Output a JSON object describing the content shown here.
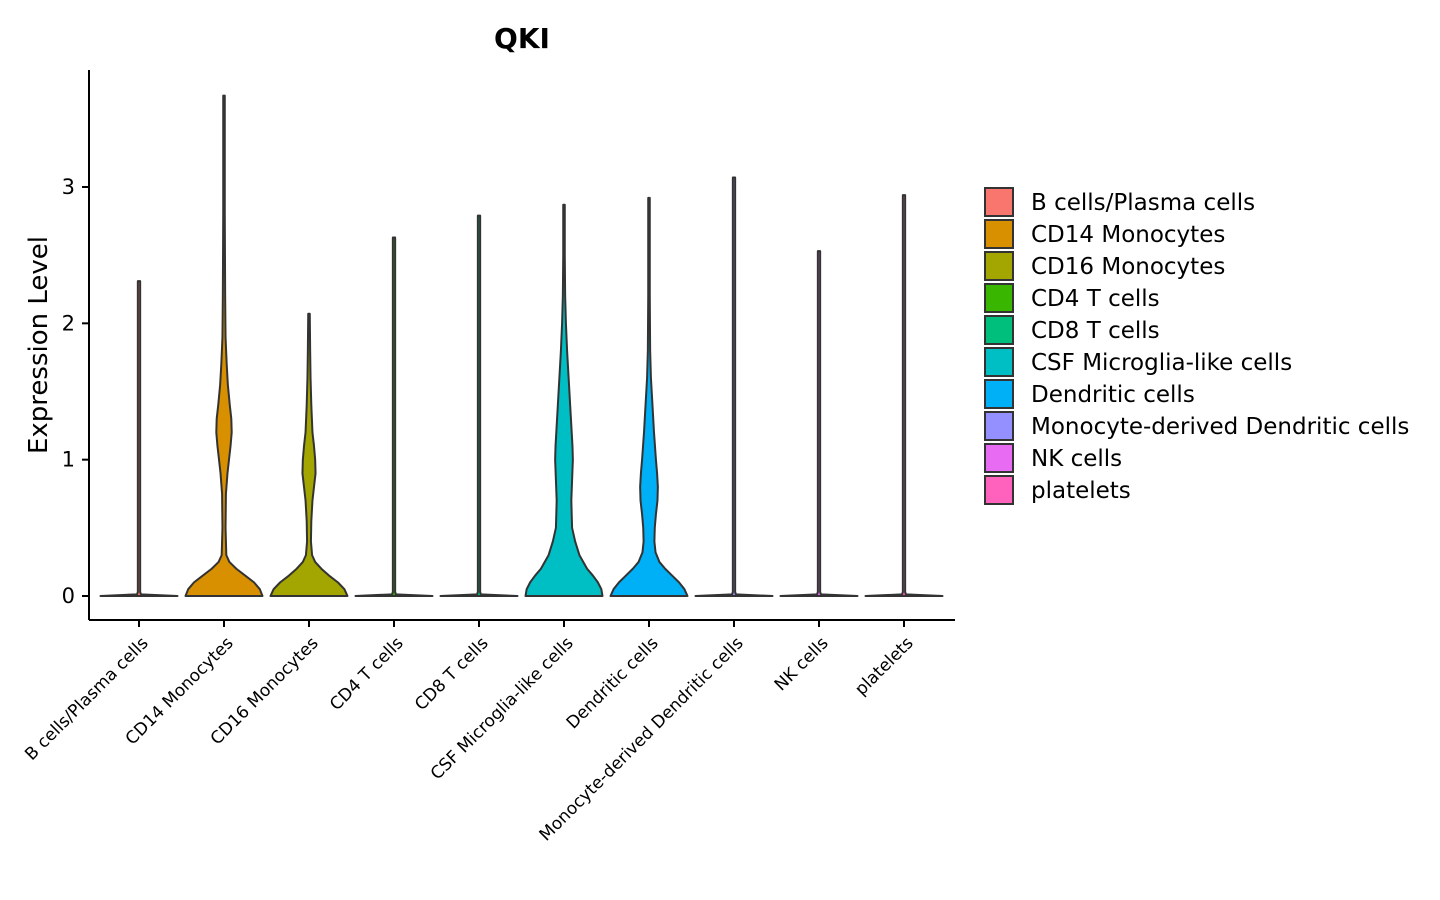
{
  "chart_data": {
    "type": "violin",
    "title": "QKI",
    "xlabel": "",
    "ylabel": "Expression Level",
    "ylim": [
      -0.18,
      3.88
    ],
    "yticks": [
      0,
      1,
      2,
      3
    ],
    "legend_position": "right",
    "categories": [
      "B cells/Plasma cells",
      "CD14 Monocytes",
      "CD16 Monocytes",
      "CD4 T cells",
      "CD8 T cells",
      "CSF Microglia-like cells",
      "Dendritic cells",
      "Monocyte-derived Dendritic cells",
      "NK cells",
      "platelets"
    ],
    "colors": [
      "#F8766D",
      "#D89000",
      "#A3A500",
      "#39B600",
      "#00BF7D",
      "#00BFC4",
      "#00B0F6",
      "#9590FF",
      "#E76BF3",
      "#FF62BC"
    ],
    "series": [
      {
        "name": "B cells/Plasma cells",
        "max": 2.31,
        "profile": [
          [
            0,
            1
          ],
          [
            0.012,
            0.05
          ],
          [
            0.03,
            0.03
          ],
          [
            2.31,
            0.03
          ]
        ]
      },
      {
        "name": "CD14 Monocytes",
        "max": 3.67,
        "profile": [
          [
            0,
            1
          ],
          [
            0.05,
            0.93
          ],
          [
            0.1,
            0.78
          ],
          [
            0.15,
            0.55
          ],
          [
            0.2,
            0.32
          ],
          [
            0.25,
            0.14
          ],
          [
            0.3,
            0.06
          ],
          [
            0.5,
            0.04
          ],
          [
            0.75,
            0.05
          ],
          [
            0.9,
            0.09
          ],
          [
            1.0,
            0.13
          ],
          [
            1.1,
            0.17
          ],
          [
            1.2,
            0.2
          ],
          [
            1.3,
            0.19
          ],
          [
            1.4,
            0.15
          ],
          [
            1.55,
            0.1
          ],
          [
            1.7,
            0.07
          ],
          [
            1.9,
            0.04
          ],
          [
            2.2,
            0.03
          ],
          [
            2.8,
            0.02
          ],
          [
            3.67,
            0.02
          ]
        ]
      },
      {
        "name": "CD16 Monocytes",
        "max": 2.07,
        "profile": [
          [
            0,
            1
          ],
          [
            0.05,
            0.92
          ],
          [
            0.1,
            0.75
          ],
          [
            0.15,
            0.52
          ],
          [
            0.2,
            0.32
          ],
          [
            0.25,
            0.16
          ],
          [
            0.3,
            0.08
          ],
          [
            0.4,
            0.05
          ],
          [
            0.55,
            0.06
          ],
          [
            0.7,
            0.09
          ],
          [
            0.8,
            0.13
          ],
          [
            0.9,
            0.17
          ],
          [
            1.0,
            0.16
          ],
          [
            1.1,
            0.13
          ],
          [
            1.2,
            0.09
          ],
          [
            1.4,
            0.06
          ],
          [
            1.6,
            0.04
          ],
          [
            1.8,
            0.03
          ],
          [
            2.07,
            0.02
          ]
        ]
      },
      {
        "name": "CD4 T cells",
        "max": 2.63,
        "profile": [
          [
            0,
            1
          ],
          [
            0.012,
            0.05
          ],
          [
            0.03,
            0.03
          ],
          [
            2.63,
            0.03
          ]
        ]
      },
      {
        "name": "CD8 T cells",
        "max": 2.79,
        "profile": [
          [
            0,
            1
          ],
          [
            0.012,
            0.05
          ],
          [
            0.03,
            0.03
          ],
          [
            2.79,
            0.03
          ]
        ]
      },
      {
        "name": "CSF Microglia-like cells",
        "max": 2.87,
        "profile": [
          [
            0,
            1
          ],
          [
            0.05,
            0.97
          ],
          [
            0.1,
            0.88
          ],
          [
            0.15,
            0.75
          ],
          [
            0.2,
            0.6
          ],
          [
            0.3,
            0.4
          ],
          [
            0.4,
            0.29
          ],
          [
            0.5,
            0.21
          ],
          [
            0.7,
            0.19
          ],
          [
            0.85,
            0.21
          ],
          [
            1.0,
            0.23
          ],
          [
            1.1,
            0.22
          ],
          [
            1.2,
            0.2
          ],
          [
            1.4,
            0.16
          ],
          [
            1.6,
            0.12
          ],
          [
            1.8,
            0.08
          ],
          [
            2.0,
            0.05
          ],
          [
            2.2,
            0.03
          ],
          [
            2.5,
            0.02
          ],
          [
            2.87,
            0.02
          ]
        ]
      },
      {
        "name": "Dendritic cells",
        "max": 2.92,
        "profile": [
          [
            0,
            1
          ],
          [
            0.05,
            0.92
          ],
          [
            0.1,
            0.78
          ],
          [
            0.15,
            0.6
          ],
          [
            0.2,
            0.42
          ],
          [
            0.25,
            0.27
          ],
          [
            0.32,
            0.17
          ],
          [
            0.4,
            0.14
          ],
          [
            0.5,
            0.15
          ],
          [
            0.6,
            0.18
          ],
          [
            0.7,
            0.22
          ],
          [
            0.8,
            0.23
          ],
          [
            0.9,
            0.21
          ],
          [
            1.0,
            0.18
          ],
          [
            1.2,
            0.13
          ],
          [
            1.4,
            0.09
          ],
          [
            1.6,
            0.05
          ],
          [
            1.8,
            0.03
          ],
          [
            2.2,
            0.02
          ],
          [
            2.92,
            0.02
          ]
        ]
      },
      {
        "name": "Monocyte-derived Dendritic cells",
        "max": 3.07,
        "profile": [
          [
            0,
            1
          ],
          [
            0.012,
            0.05
          ],
          [
            0.03,
            0.03
          ],
          [
            3.07,
            0.03
          ]
        ]
      },
      {
        "name": "NK cells",
        "max": 2.53,
        "profile": [
          [
            0,
            1
          ],
          [
            0.012,
            0.05
          ],
          [
            0.03,
            0.03
          ],
          [
            2.53,
            0.03
          ]
        ]
      },
      {
        "name": "platelets",
        "max": 2.94,
        "profile": [
          [
            0,
            1
          ],
          [
            0.012,
            0.05
          ],
          [
            0.03,
            0.03
          ],
          [
            2.94,
            0.03
          ]
        ]
      }
    ]
  }
}
